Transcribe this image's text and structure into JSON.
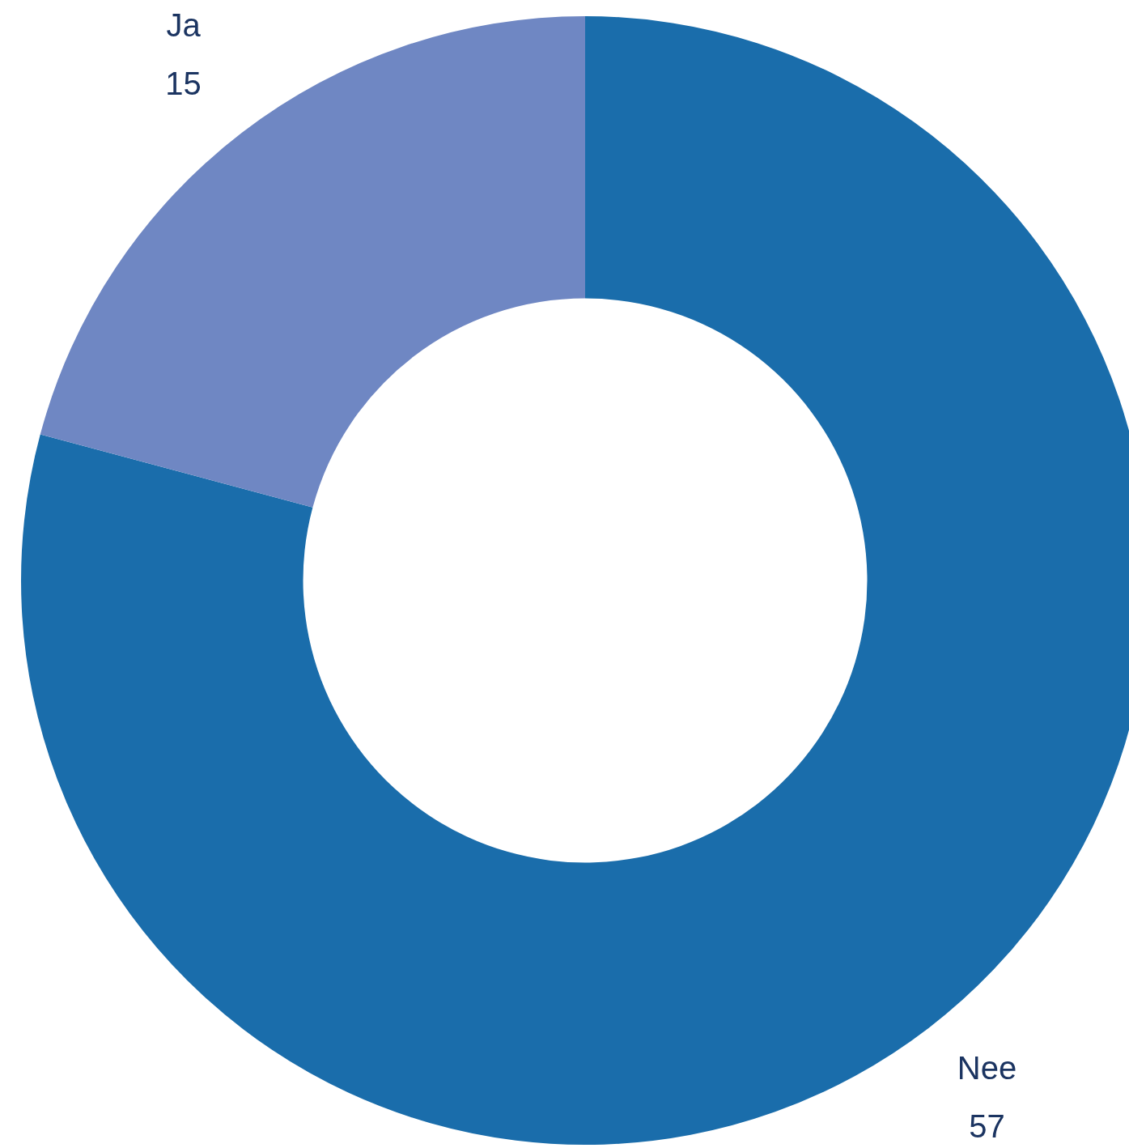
{
  "chart_data": {
    "type": "donut",
    "categories": [
      "Nee",
      "Ja"
    ],
    "values": [
      57,
      15
    ],
    "colors": [
      "#1a6dab",
      "#6f87c3"
    ],
    "data_labels": true,
    "legend": false
  }
}
